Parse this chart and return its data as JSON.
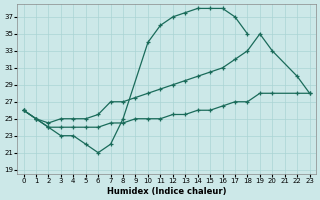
{
  "xlabel": "Humidex (Indice chaleur)",
  "xlim": [
    -0.5,
    23.5
  ],
  "ylim": [
    18.5,
    38.5
  ],
  "yticks": [
    19,
    21,
    23,
    25,
    27,
    29,
    31,
    33,
    35,
    37
  ],
  "xticks": [
    0,
    1,
    2,
    3,
    4,
    5,
    6,
    7,
    8,
    9,
    10,
    11,
    12,
    13,
    14,
    15,
    16,
    17,
    18,
    19,
    20,
    21,
    22,
    23
  ],
  "bg_color": "#cce8e8",
  "grid_color": "#aad4d4",
  "line_color": "#1a6b5a",
  "line1_x": [
    0,
    1,
    2,
    3,
    4,
    5,
    6,
    7,
    8,
    10,
    11,
    12,
    13,
    14,
    15,
    16,
    17,
    18
  ],
  "line1_y": [
    26,
    25,
    24,
    23,
    23,
    22,
    21,
    22,
    25,
    34,
    36,
    37,
    37.5,
    38,
    38,
    38,
    37,
    35
  ],
  "line2_x": [
    0,
    1,
    2,
    3,
    4,
    5,
    6,
    7,
    8,
    9,
    10,
    11,
    12,
    13,
    14,
    15,
    16,
    17,
    18,
    19,
    20,
    22,
    23
  ],
  "line2_y": [
    26,
    25,
    24.5,
    25,
    25,
    25,
    25.5,
    27,
    27,
    27.5,
    28,
    28.5,
    29,
    29.5,
    30,
    30.5,
    31,
    32,
    33,
    35,
    33,
    30,
    28
  ],
  "line3_x": [
    0,
    1,
    2,
    3,
    4,
    5,
    6,
    7,
    8,
    9,
    10,
    11,
    12,
    13,
    14,
    15,
    16,
    17,
    18,
    19,
    20,
    22,
    23
  ],
  "line3_y": [
    26,
    25,
    24,
    24,
    24,
    24,
    24,
    24.5,
    24.5,
    25,
    25,
    25,
    25.5,
    25.5,
    26,
    26,
    26.5,
    27,
    27,
    28,
    28,
    28,
    28
  ]
}
